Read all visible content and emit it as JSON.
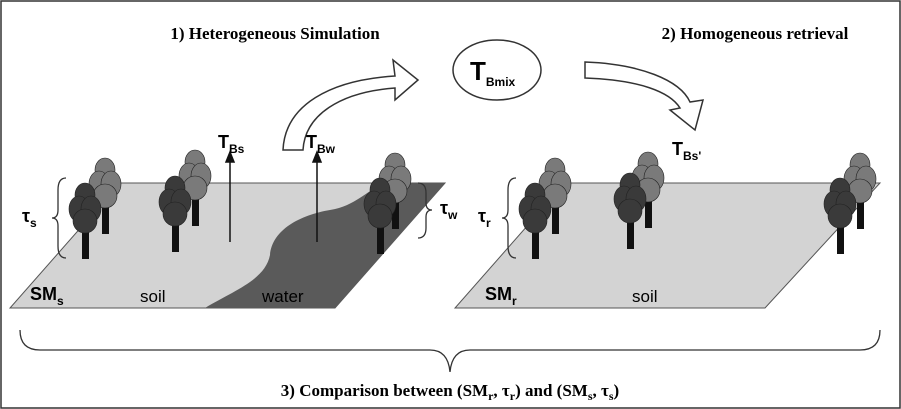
{
  "titles": {
    "simulation": "1) Heterogeneous Simulation",
    "retrieval": "2) Homogeneous retrieval"
  },
  "mix": {
    "main": "T",
    "sub": "Bmix"
  },
  "left": {
    "tb_soil": {
      "main": "T",
      "sub": "Bs"
    },
    "tb_water": {
      "main": "T",
      "sub": "Bw"
    },
    "tau_soil": {
      "main": "τ",
      "sub": "s"
    },
    "tau_water": {
      "main": "τ",
      "sub": "w"
    },
    "sm": {
      "main": "SM",
      "sub": "s"
    },
    "soil": "soil",
    "water": "water"
  },
  "right": {
    "tb": {
      "main": "T",
      "sub": "Bs'"
    },
    "tau": {
      "main": "τ",
      "sub": "r"
    },
    "sm": {
      "main": "SM",
      "sub": "r"
    },
    "soil": "soil"
  },
  "caption": [
    {
      "text": "3) Comparison between (SM"
    },
    {
      "sub": "r"
    },
    {
      "text": ", τ"
    },
    {
      "sub": "r"
    },
    {
      "text": ") and (SM"
    },
    {
      "sub": "s"
    },
    {
      "text": ", τ"
    },
    {
      "sub": "s"
    },
    {
      "text": ")"
    }
  ]
}
